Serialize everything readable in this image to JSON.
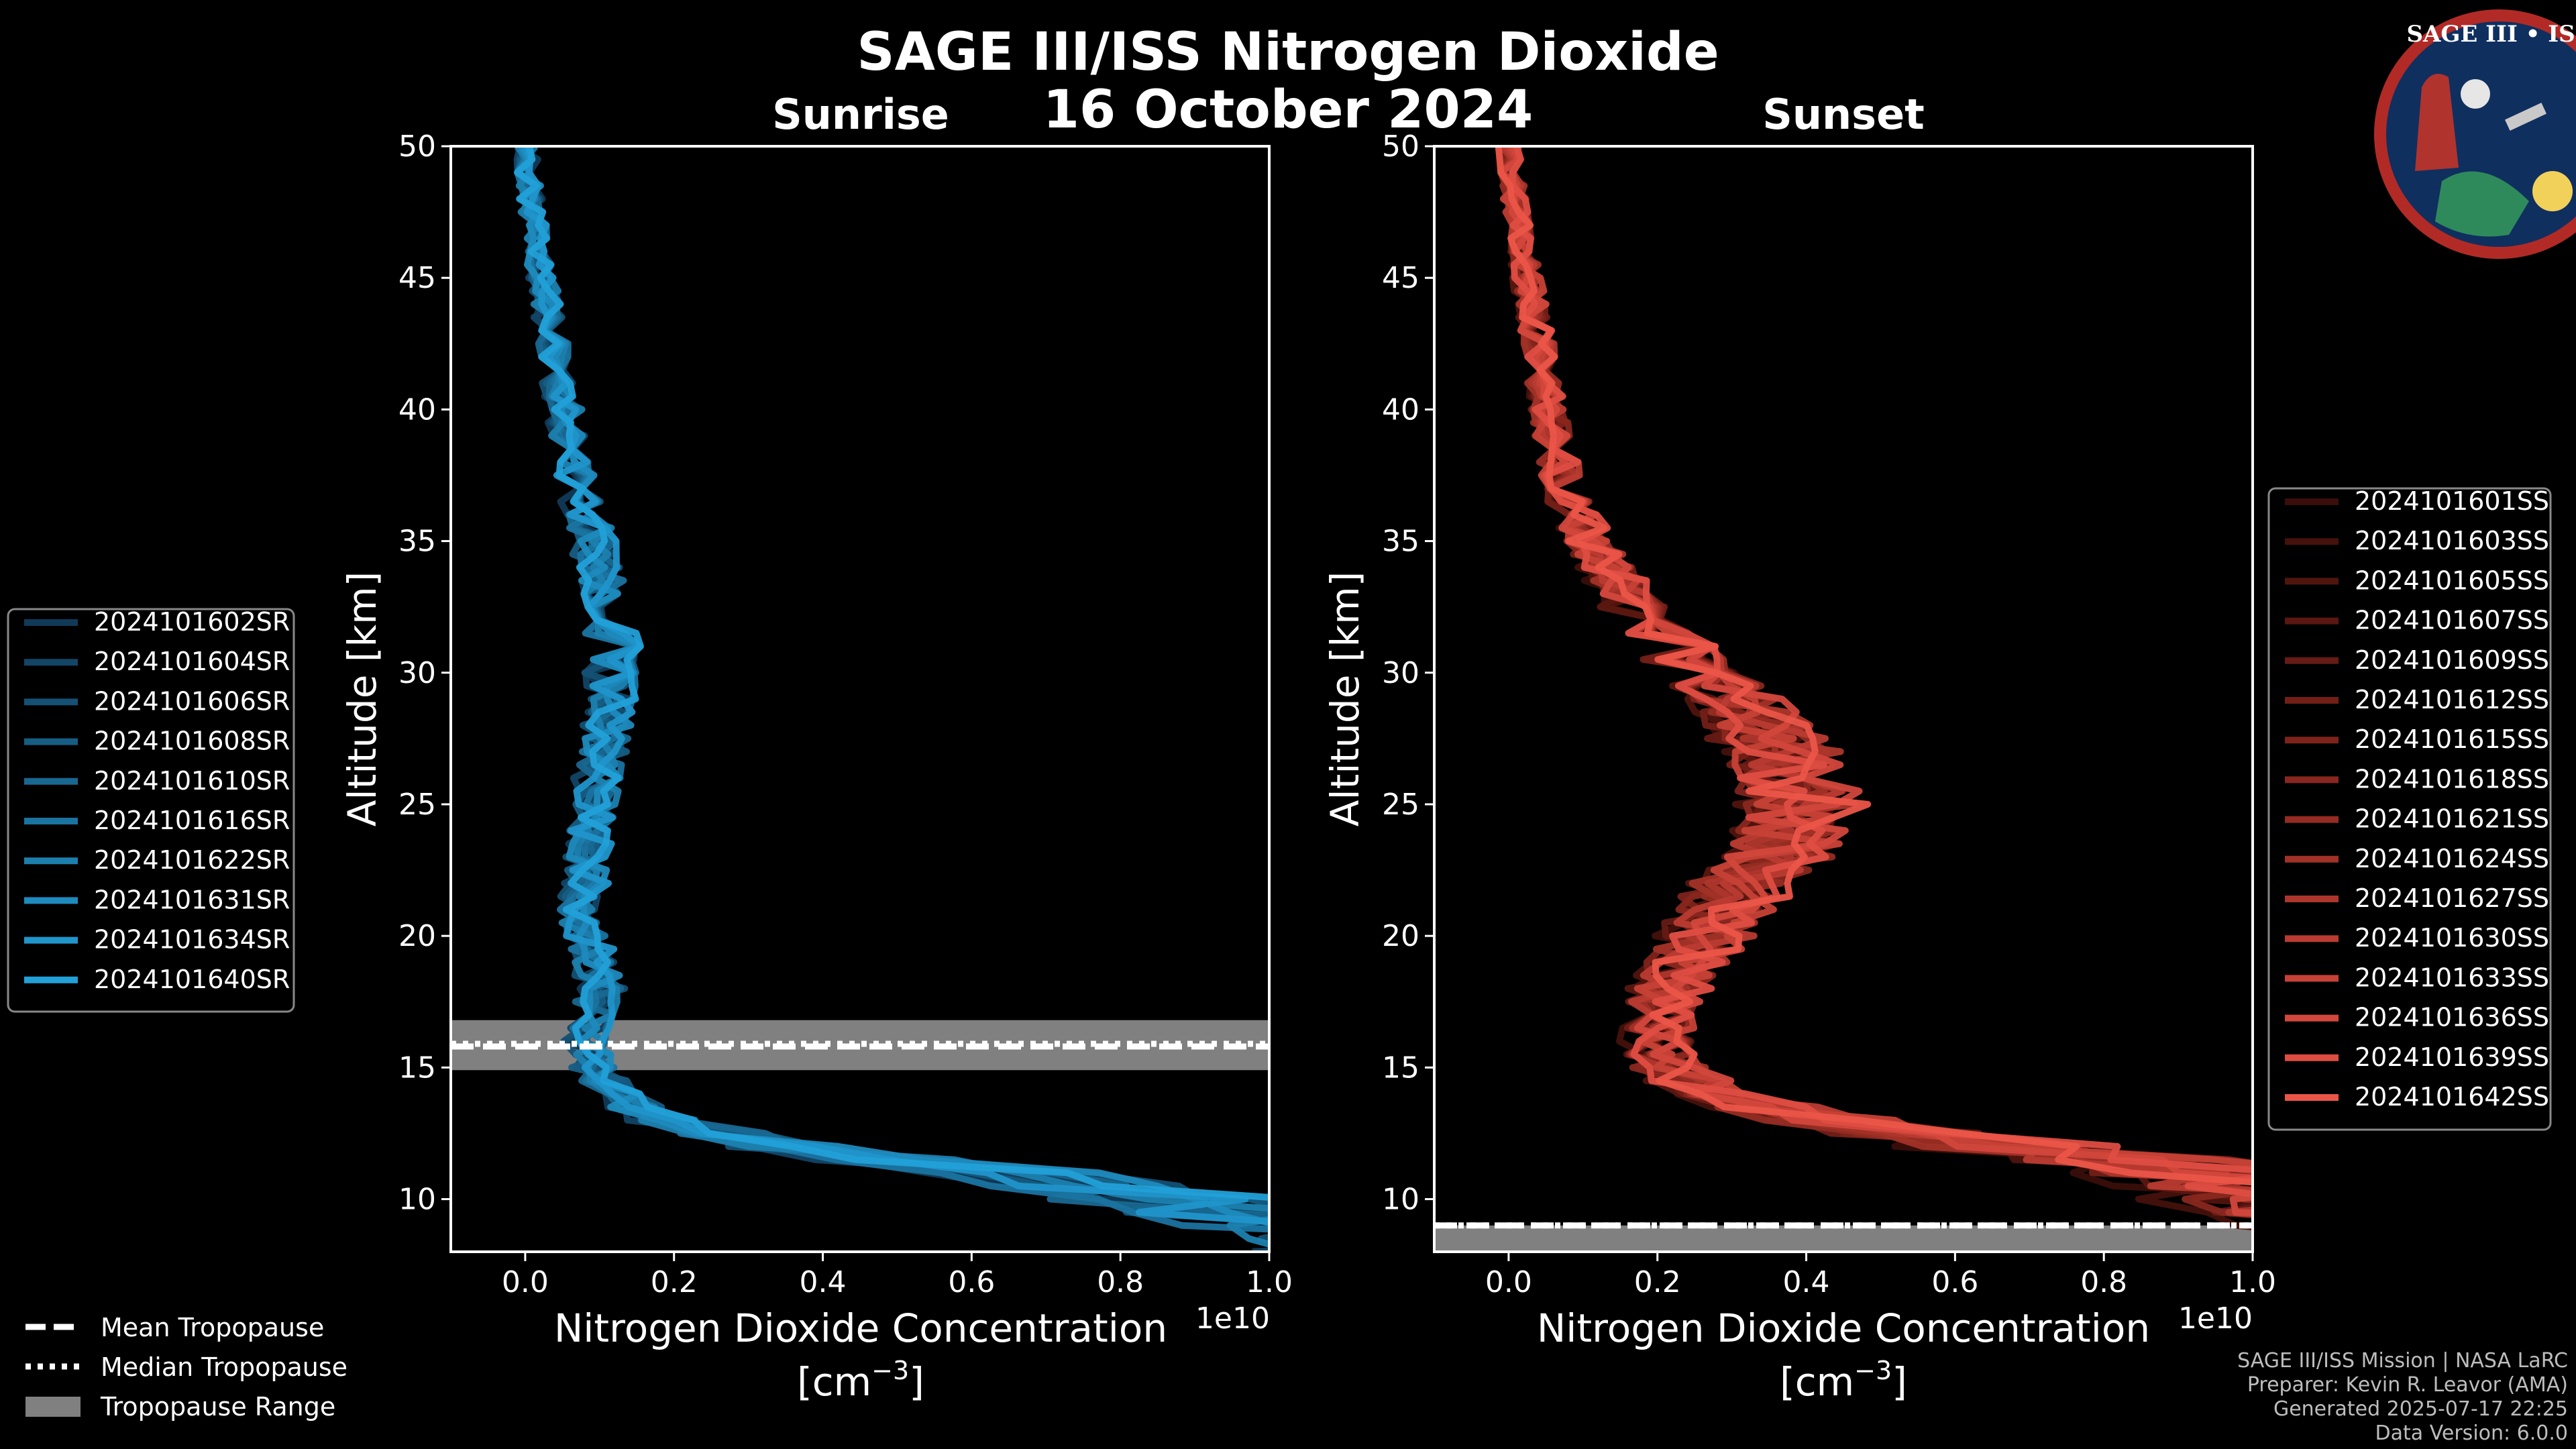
{
  "chart_data": [
    {
      "type": "line",
      "panel": "Sunrise",
      "title": "Sunrise",
      "xlabel": "Nitrogen Dioxide Concentration",
      "xunit": "[cm",
      "xunit_exp": "−3",
      "xunit_close": "]",
      "x_scale_label": "1e10",
      "ylabel": "Altitude [km]",
      "xlim": [
        -0.1,
        1.0
      ],
      "ylim": [
        8,
        50
      ],
      "xticks": [
        0.0,
        0.2,
        0.4,
        0.6,
        0.8,
        1.0
      ],
      "xtick_labels": [
        "0.0",
        "0.2",
        "0.4",
        "0.6",
        "0.8",
        "1.0"
      ],
      "yticks": [
        10,
        15,
        20,
        25,
        30,
        35,
        40,
        45,
        50
      ],
      "ytick_labels": [
        "10",
        "15",
        "20",
        "25",
        "30",
        "35",
        "40",
        "45",
        "50"
      ],
      "profile_shape": {
        "altitudes": [
          8,
          9,
          10,
          11,
          12,
          13,
          14,
          15,
          16,
          17,
          18,
          19,
          20,
          21,
          22,
          23,
          25,
          27,
          29,
          31,
          33,
          35,
          37,
          39,
          41,
          43,
          45,
          47,
          50
        ],
        "values": [
          1.05,
          0.9,
          0.75,
          0.55,
          0.3,
          0.16,
          0.1,
          0.08,
          0.07,
          0.08,
          0.09,
          0.08,
          0.07,
          0.06,
          0.07,
          0.07,
          0.08,
          0.09,
          0.1,
          0.1,
          0.09,
          0.08,
          0.06,
          0.05,
          0.04,
          0.03,
          0.02,
          0.01,
          0.0
        ]
      },
      "tropopause": {
        "mean": 15.8,
        "median": 15.9,
        "range": [
          14.9,
          16.8
        ]
      },
      "series": [
        {
          "name": "2024101602SR",
          "color": "#103a57"
        },
        {
          "name": "2024101604SR",
          "color": "#124566"
        },
        {
          "name": "2024101606SR",
          "color": "#145174"
        },
        {
          "name": "2024101608SR",
          "color": "#165d83"
        },
        {
          "name": "2024101610SR",
          "color": "#186891"
        },
        {
          "name": "2024101616SR",
          "color": "#1a73a0"
        },
        {
          "name": "2024101622SR",
          "color": "#1c7fae"
        },
        {
          "name": "2024101631SR",
          "color": "#1e8abd"
        },
        {
          "name": "2024101634SR",
          "color": "#2095cb"
        },
        {
          "name": "2024101640SR",
          "color": "#22a0d8"
        }
      ]
    },
    {
      "type": "line",
      "panel": "Sunset",
      "title": "Sunset",
      "xlabel": "Nitrogen Dioxide Concentration",
      "xunit": "[cm",
      "xunit_exp": "−3",
      "xunit_close": "]",
      "x_scale_label": "1e10",
      "ylabel": "Altitude [km]",
      "xlim": [
        -0.1,
        1.0
      ],
      "ylim": [
        8,
        50
      ],
      "xticks": [
        0.0,
        0.2,
        0.4,
        0.6,
        0.8,
        1.0
      ],
      "xtick_labels": [
        "0.0",
        "0.2",
        "0.4",
        "0.6",
        "0.8",
        "1.0"
      ],
      "yticks": [
        10,
        15,
        20,
        25,
        30,
        35,
        40,
        45,
        50
      ],
      "ytick_labels": [
        "10",
        "15",
        "20",
        "25",
        "30",
        "35",
        "40",
        "45",
        "50"
      ],
      "profile_shape": {
        "altitudes": [
          8,
          9,
          10,
          11,
          12,
          13,
          14,
          15,
          16,
          17,
          18,
          19,
          20,
          21,
          22,
          23,
          25,
          27,
          29,
          31,
          33,
          35,
          37,
          39,
          41,
          43,
          45,
          47,
          50
        ],
        "values": [
          1.1,
          1.0,
          0.9,
          0.8,
          0.55,
          0.35,
          0.22,
          0.18,
          0.17,
          0.17,
          0.18,
          0.2,
          0.22,
          0.24,
          0.26,
          0.3,
          0.33,
          0.3,
          0.25,
          0.18,
          0.13,
          0.09,
          0.06,
          0.05,
          0.04,
          0.03,
          0.02,
          0.01,
          0.0
        ]
      },
      "tropopause": {
        "mean": 9.0,
        "median": 9.0,
        "range": [
          8.0,
          9.0
        ]
      },
      "series": [
        {
          "name": "2024101601SS",
          "color": "#3a0e0a"
        },
        {
          "name": "2024101603SS",
          "color": "#45110c"
        },
        {
          "name": "2024101605SS",
          "color": "#50140e"
        },
        {
          "name": "2024101607SS",
          "color": "#5b1711"
        },
        {
          "name": "2024101609SS",
          "color": "#661b14"
        },
        {
          "name": "2024101612SS",
          "color": "#721f17"
        },
        {
          "name": "2024101615SS",
          "color": "#7d231b"
        },
        {
          "name": "2024101618SS",
          "color": "#89271f"
        },
        {
          "name": "2024101621SS",
          "color": "#952c23"
        },
        {
          "name": "2024101624SS",
          "color": "#a13127"
        },
        {
          "name": "2024101627SS",
          "color": "#ad362c"
        },
        {
          "name": "2024101630SS",
          "color": "#b93b31"
        },
        {
          "name": "2024101633SS",
          "color": "#c64136"
        },
        {
          "name": "2024101636SS",
          "color": "#d2473c"
        },
        {
          "name": "2024101639SS",
          "color": "#de4d42"
        },
        {
          "name": "2024101642SS",
          "color": "#ea5548"
        }
      ]
    }
  ],
  "figure": {
    "title": "SAGE III/ISS Nitrogen Dioxide",
    "date": "16 October 2024"
  },
  "common_legend": {
    "mean": "Mean Tropopause",
    "median": "Median Tropopause",
    "range": "Tropopause Range"
  },
  "logo": {
    "name": "SAGE III • ISS"
  },
  "credits": {
    "line1": "SAGE III/ISS Mission | NASA LaRC",
    "line2": "Preparer: Kevin R. Leavor (AMA)",
    "line3": "Generated 2025-07-17 22:25",
    "line4": "Data Version: 6.0.0"
  },
  "colors": {
    "background": "#000000",
    "axes": "#ffffff",
    "tropopause_band": "#808080"
  }
}
